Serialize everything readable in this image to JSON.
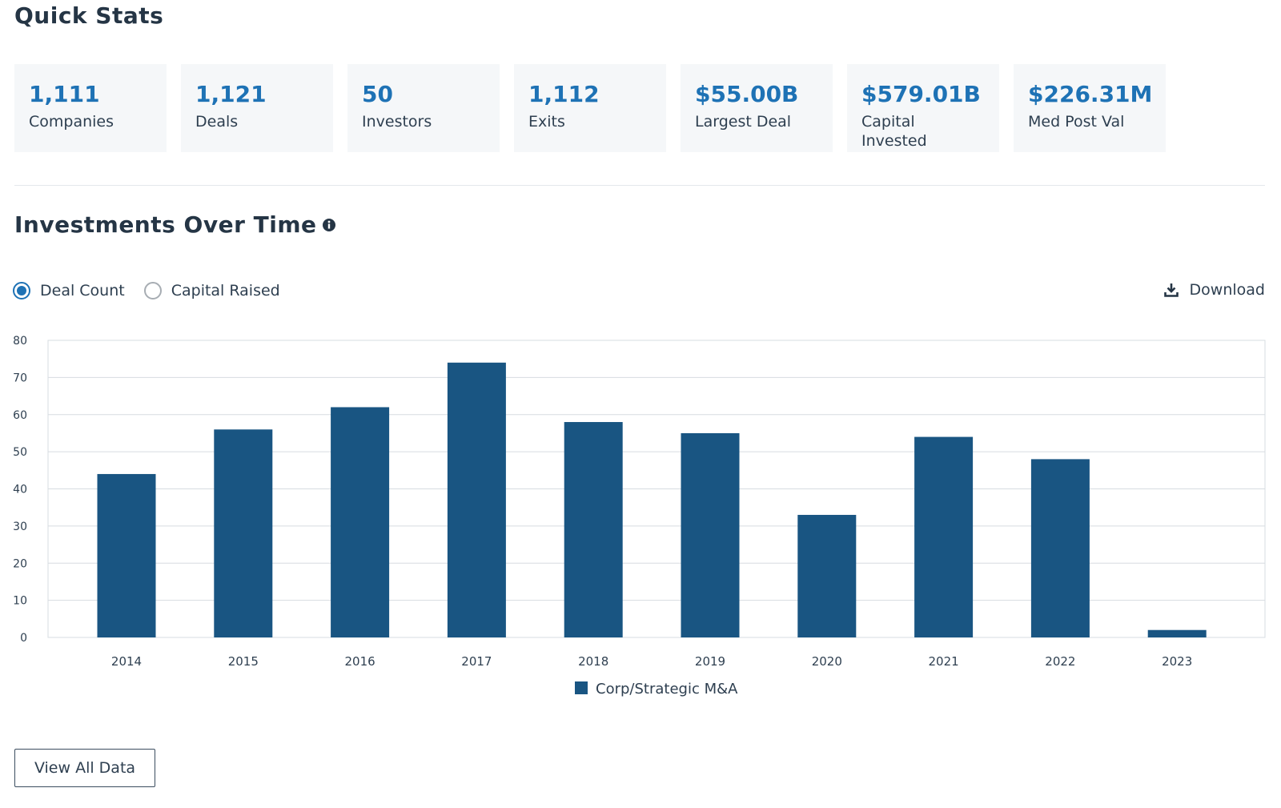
{
  "quick_stats": {
    "title": "Quick Stats",
    "cards": [
      {
        "value": "1,111",
        "label": "Companies"
      },
      {
        "value": "1,121",
        "label": "Deals"
      },
      {
        "value": "50",
        "label": "Investors"
      },
      {
        "value": "1,112",
        "label": "Exits"
      },
      {
        "value": "$55.00B",
        "label": "Largest Deal"
      },
      {
        "value": "$579.01B",
        "label": "Capital Invested"
      },
      {
        "value": "$226.31M",
        "label": "Med Post Val"
      }
    ]
  },
  "investments": {
    "title": "Investments Over Time",
    "info_icon": "info-icon",
    "options": [
      {
        "label": "Deal Count",
        "selected": true
      },
      {
        "label": "Capital Raised",
        "selected": false
      }
    ],
    "download_label": "Download",
    "download_icon": "download-icon"
  },
  "chart_data": {
    "type": "bar",
    "categories": [
      "2014",
      "2015",
      "2016",
      "2017",
      "2018",
      "2019",
      "2020",
      "2021",
      "2022",
      "2023"
    ],
    "series": [
      {
        "name": "Corp/Strategic M&A",
        "values": [
          44,
          56,
          62,
          74,
          58,
          55,
          33,
          54,
          48,
          2
        ]
      }
    ],
    "title": "",
    "xlabel": "",
    "ylabel": "",
    "ylim": [
      0,
      80
    ],
    "yticks": [
      0,
      10,
      20,
      30,
      40,
      50,
      60,
      70,
      80
    ],
    "grid": true,
    "legend_position": "bottom-center",
    "bar_color": "#195582"
  },
  "view_all_label": "View All Data",
  "colors": {
    "accent": "#1e72b5",
    "bar": "#195582",
    "heading": "#253545",
    "card_bg": "#f5f7f9"
  }
}
